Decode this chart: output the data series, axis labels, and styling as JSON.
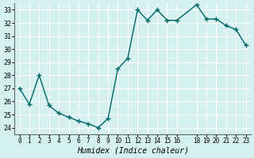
{
  "x": [
    0,
    1,
    2,
    3,
    4,
    5,
    6,
    7,
    8,
    9,
    10,
    11,
    12,
    13,
    14,
    15,
    16,
    18,
    19,
    20,
    21,
    22,
    23
  ],
  "y": [
    27.0,
    25.8,
    28.0,
    25.7,
    25.1,
    24.8,
    24.5,
    24.3,
    24.0,
    24.7,
    28.5,
    29.3,
    33.0,
    32.2,
    33.0,
    32.2,
    32.2,
    33.4,
    32.3,
    32.3,
    31.8,
    31.5,
    30.3
  ],
  "ylim": [
    24,
    33
  ],
  "yticks": [
    24,
    25,
    26,
    27,
    28,
    29,
    30,
    31,
    32,
    33
  ],
  "xticks": [
    0,
    1,
    2,
    3,
    4,
    5,
    6,
    7,
    8,
    9,
    10,
    11,
    12,
    13,
    14,
    15,
    16,
    18,
    19,
    20,
    21,
    22,
    23
  ],
  "xlabel": "Humidex (Indice chaleur)",
  "line_color": "#006666",
  "marker_color": "#006666",
  "bg_color": "#d4f0f0",
  "grid_color": "#ffffff",
  "title": ""
}
